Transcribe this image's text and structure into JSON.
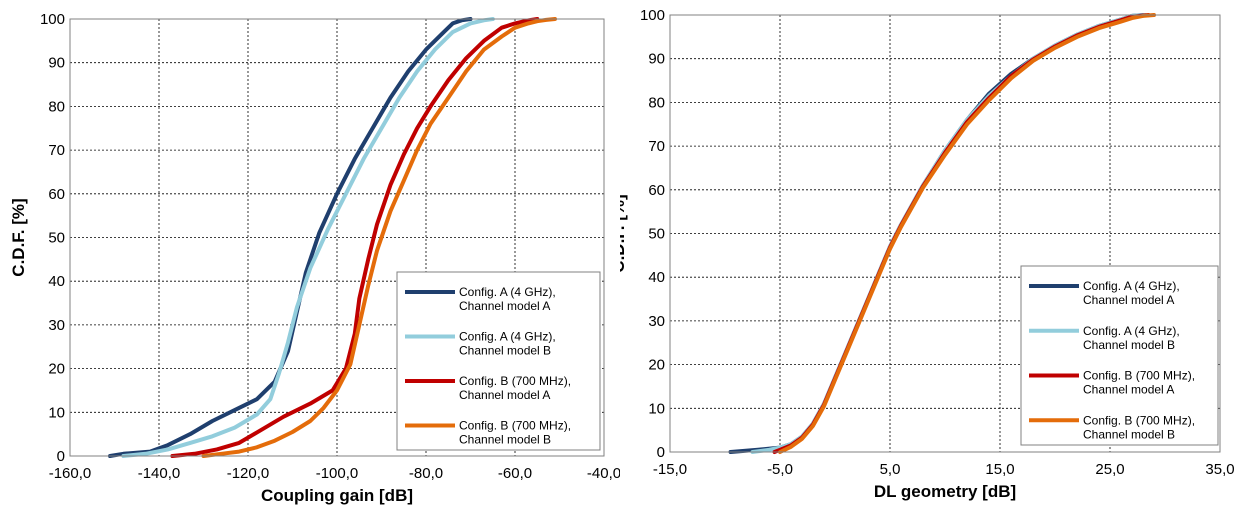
{
  "charts": [
    {
      "xlabel": "Coupling gain [dB]",
      "ylabel": "C.D.F. [%]",
      "xticks": [
        "-160,0",
        "-140,0",
        "-120,0",
        "-100,0",
        "-80,0",
        "-60,0",
        "-40,0"
      ],
      "yticks": [
        "0",
        "10",
        "20",
        "30",
        "40",
        "50",
        "60",
        "70",
        "80",
        "90",
        "100"
      ]
    },
    {
      "xlabel": "DL geometry [dB]",
      "ylabel": "C.D.F. [%]",
      "xticks": [
        "-15,0",
        "-5,0",
        "5,0",
        "15,0",
        "25,0",
        "35,0"
      ],
      "yticks": [
        "0",
        "10",
        "20",
        "30",
        "40",
        "50",
        "60",
        "70",
        "80",
        "90",
        "100"
      ]
    }
  ],
  "legend": [
    {
      "line1": "Config. A (4 GHz),",
      "line2": "Channel model A",
      "color": "#1f3f6e"
    },
    {
      "line1": "Config. A (4 GHz),",
      "line2": "Channel model B",
      "color": "#92cddc"
    },
    {
      "line1": "Config. B (700 MHz),",
      "line2": "Channel model A",
      "color": "#c00000"
    },
    {
      "line1": "Config. B (700 MHz),",
      "line2": "Channel model B",
      "color": "#e46c0a"
    }
  ],
  "chart_data": [
    {
      "type": "line",
      "xlabel": "Coupling gain [dB]",
      "ylabel": "C.D.F. [%]",
      "xlim": [
        -160,
        -40
      ],
      "ylim": [
        0,
        100
      ],
      "grid": true,
      "legend_position": "bottom-right",
      "series": [
        {
          "name": "Config. A (4 GHz), Channel model A",
          "color": "#1f3f6e",
          "x": [
            -151,
            -148,
            -142,
            -138,
            -133,
            -128,
            -123,
            -118,
            -114,
            -111,
            -109,
            -107,
            -104,
            -100,
            -96,
            -92,
            -88,
            -84,
            -80,
            -76,
            -74,
            -72,
            -70
          ],
          "y": [
            0,
            0.5,
            1,
            2.5,
            5,
            8,
            10.5,
            13,
            17,
            24,
            33,
            42,
            51,
            60,
            68,
            75,
            82,
            88,
            93,
            97,
            99,
            99.7,
            100
          ]
        },
        {
          "name": "Config. A (4 GHz), Channel model B",
          "color": "#92cddc",
          "x": [
            -148,
            -143,
            -138,
            -133,
            -128,
            -123,
            -118,
            -115,
            -113,
            -111,
            -109,
            -106,
            -102,
            -98,
            -94,
            -90,
            -86,
            -82,
            -78,
            -74,
            -70,
            -67,
            -65
          ],
          "y": [
            0,
            0.5,
            1.5,
            3,
            4.5,
            6.5,
            9.5,
            13,
            19,
            26,
            34,
            43,
            52,
            60,
            68,
            75,
            82,
            88,
            93,
            97,
            99,
            99.7,
            100
          ]
        },
        {
          "name": "Config. B (700 MHz), Channel model A",
          "color": "#c00000",
          "x": [
            -137,
            -132,
            -127,
            -122,
            -117,
            -112,
            -106,
            -101,
            -98,
            -96,
            -95,
            -93,
            -91,
            -88,
            -85,
            -82,
            -79,
            -75,
            -71,
            -67,
            -63,
            -60,
            -57,
            -55
          ],
          "y": [
            0,
            0.5,
            1.5,
            3,
            6,
            9,
            12,
            15,
            20,
            28,
            36,
            45,
            53,
            62,
            69,
            75,
            80,
            86,
            91,
            95,
            98,
            99,
            99.7,
            100
          ]
        },
        {
          "name": "Config. B (700 MHz), Channel model B",
          "color": "#e46c0a",
          "x": [
            -130,
            -126,
            -122,
            -118,
            -114,
            -110,
            -106,
            -103,
            -100,
            -97,
            -95,
            -93,
            -91,
            -88,
            -85,
            -82,
            -79,
            -75,
            -71,
            -67,
            -63,
            -60,
            -57,
            -55,
            -53,
            -51
          ],
          "y": [
            0,
            0.5,
            1,
            2,
            3.5,
            5.5,
            8,
            11,
            15,
            21,
            30,
            39,
            47,
            56,
            63,
            70,
            76,
            82,
            88,
            93,
            96,
            98,
            99,
            99.5,
            99.8,
            100
          ]
        }
      ]
    },
    {
      "type": "line",
      "xlabel": "DL geometry [dB]",
      "ylabel": "C.D.F. [%]",
      "xlim": [
        -15,
        35
      ],
      "ylim": [
        0,
        100
      ],
      "grid": true,
      "legend_position": "bottom-right",
      "series": [
        {
          "name": "Config. A (4 GHz), Channel model A",
          "color": "#1f3f6e",
          "x": [
            -9.5,
            -7,
            -5,
            -4,
            -3,
            -2,
            -1,
            0,
            1,
            2,
            3,
            4,
            5,
            6,
            8,
            10,
            12,
            14,
            16,
            18,
            20,
            22,
            24,
            26,
            27,
            28
          ],
          "y": [
            0,
            0.5,
            1,
            1.8,
            3.5,
            6.5,
            11,
            17,
            23,
            29,
            35,
            41,
            47,
            52,
            61,
            69,
            76,
            82,
            86.5,
            90,
            93,
            95.5,
            97.5,
            99,
            99.8,
            100
          ]
        },
        {
          "name": "Config. A (4 GHz), Channel model B",
          "color": "#92cddc",
          "x": [
            -7.5,
            -6,
            -5,
            -4,
            -3,
            -2,
            -1,
            0,
            1,
            2,
            3,
            4,
            5,
            6,
            8,
            10,
            12,
            14,
            16,
            18,
            20,
            22,
            24,
            26,
            27,
            28.2
          ],
          "y": [
            0,
            0.5,
            1,
            1.8,
            3.5,
            6.5,
            11,
            17,
            23,
            29,
            35,
            41,
            47,
            52,
            61,
            69,
            76,
            81.5,
            86,
            90,
            93,
            95.5,
            97.5,
            99,
            99.8,
            100
          ]
        },
        {
          "name": "Config. B (700 MHz), Channel model A",
          "color": "#c00000",
          "x": [
            -5.5,
            -5,
            -4,
            -3,
            -2,
            -1,
            0,
            1,
            2,
            3,
            4,
            5,
            6,
            8,
            10,
            12,
            14,
            16,
            18,
            20,
            22,
            24,
            26,
            27,
            28.5
          ],
          "y": [
            0,
            0.5,
            1.5,
            3.3,
            6.3,
            10.8,
            16.8,
            22.8,
            28.8,
            34.8,
            40.8,
            46.8,
            51.8,
            60.8,
            68.5,
            75.5,
            81,
            86,
            89.8,
            92.8,
            95.3,
            97.3,
            98.8,
            99.6,
            100
          ]
        },
        {
          "name": "Config. B (700 MHz), Channel model B",
          "color": "#e46c0a",
          "x": [
            -5,
            -4,
            -3,
            -2,
            -1,
            0,
            1,
            2,
            3,
            4,
            5,
            6,
            8,
            10,
            12,
            14,
            16,
            18,
            20,
            22,
            24,
            26,
            27,
            28,
            29
          ],
          "y": [
            0,
            1.2,
            3,
            6,
            10.5,
            16.5,
            22.5,
            28.5,
            34.5,
            40.5,
            46.5,
            51.5,
            60.5,
            68,
            75,
            80.5,
            85.5,
            89.5,
            92.5,
            95,
            97,
            98.5,
            99.3,
            99.8,
            100
          ]
        }
      ]
    }
  ]
}
